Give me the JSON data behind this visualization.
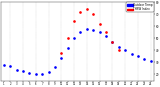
{
  "hours": [
    1,
    2,
    3,
    4,
    5,
    6,
    7,
    8,
    9,
    10,
    11,
    12,
    13,
    14,
    15,
    16,
    17,
    18,
    19,
    20,
    21,
    22,
    23,
    24
  ],
  "outdoor_temp": [
    28,
    27,
    24,
    23,
    21,
    20,
    20,
    22,
    26,
    34,
    42,
    50,
    55,
    58,
    57,
    55,
    52,
    47,
    43,
    40,
    37,
    35,
    33,
    31
  ],
  "thsw": [
    null,
    null,
    null,
    null,
    null,
    null,
    null,
    null,
    null,
    38,
    50,
    64,
    72,
    74,
    70,
    62,
    55,
    47,
    40,
    null,
    null,
    null,
    null,
    null
  ],
  "temp_color": "#0000ff",
  "thsw_color": "#ff0000",
  "bg_color": "#ffffff",
  "plot_bg": "#000000",
  "ylim": [
    15,
    80
  ],
  "legend_temp_label": "Outdoor Temp",
  "legend_thsw_label": "THSW Index",
  "marker_size": 1.8,
  "grid_color": "#888888",
  "legend_blue": "#0000ff",
  "legend_red": "#ff0000"
}
